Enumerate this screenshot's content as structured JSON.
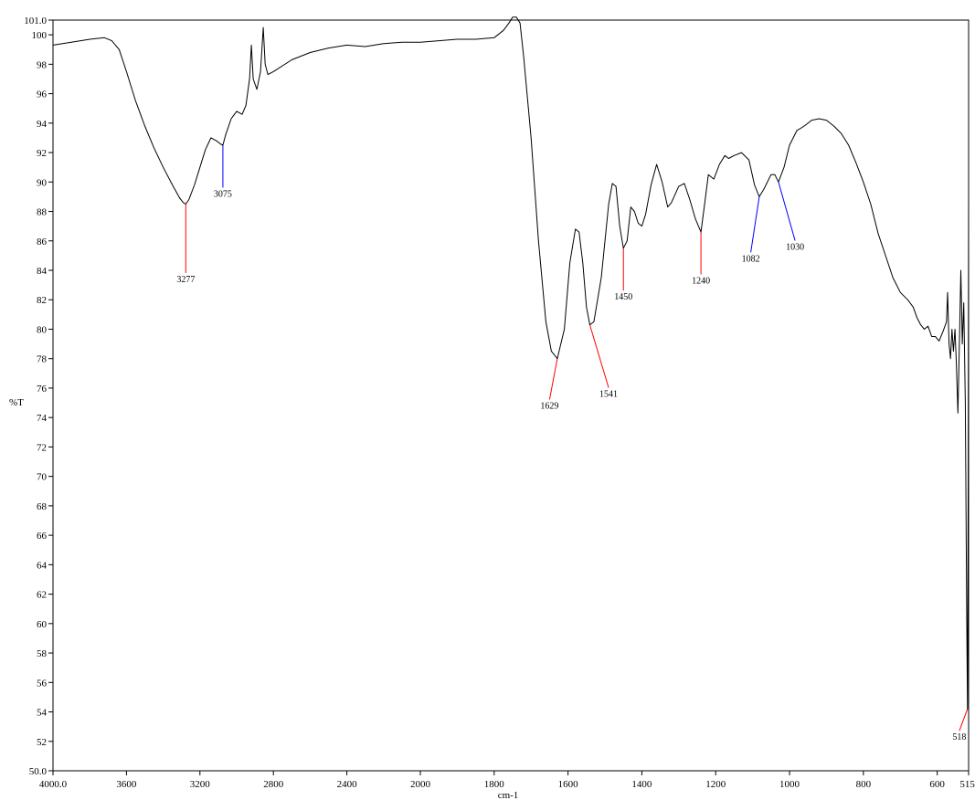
{
  "chart_data": {
    "type": "line",
    "title": "",
    "xlabel": "cm-1",
    "ylabel": "%T",
    "xlim": [
      4000.0,
      515.0
    ],
    "ylim": [
      50.0,
      101.0
    ],
    "x_reversed": true,
    "grid": false,
    "x_tick_values": [
      4000,
      3600,
      3200,
      2800,
      2400,
      2000,
      1800,
      1600,
      1400,
      1200,
      1000,
      800,
      600,
      515
    ],
    "x_tick_labels": [
      "4000.0",
      "3600",
      "3200",
      "2800",
      "2400",
      "2000",
      "1800",
      "1600",
      "1400",
      "1200",
      "1000",
      "800",
      "600",
      "515."
    ],
    "y_tick_values": [
      50,
      52,
      54,
      56,
      58,
      60,
      62,
      64,
      66,
      68,
      70,
      72,
      74,
      76,
      78,
      80,
      82,
      84,
      86,
      88,
      90,
      92,
      94,
      96,
      98,
      100,
      101
    ],
    "y_tick_labels": [
      "50.0",
      "52",
      "54",
      "56",
      "58",
      "60",
      "62",
      "64",
      "66",
      "68",
      "70",
      "72",
      "74",
      "76",
      "78",
      "80",
      "82",
      "84",
      "86",
      "88",
      "90",
      "92",
      "94",
      "96",
      "98",
      "100",
      "101.0"
    ],
    "series": [
      {
        "color": "#000000",
        "points": [
          [
            4000,
            99.3
          ],
          [
            3900,
            99.5
          ],
          [
            3800,
            99.7
          ],
          [
            3720,
            99.8
          ],
          [
            3680,
            99.6
          ],
          [
            3640,
            99.0
          ],
          [
            3600,
            97.5
          ],
          [
            3550,
            95.5
          ],
          [
            3500,
            93.8
          ],
          [
            3450,
            92.3
          ],
          [
            3400,
            91.0
          ],
          [
            3350,
            89.8
          ],
          [
            3310,
            88.9
          ],
          [
            3290,
            88.6
          ],
          [
            3277,
            88.5
          ],
          [
            3260,
            88.8
          ],
          [
            3230,
            89.8
          ],
          [
            3200,
            91.0
          ],
          [
            3170,
            92.2
          ],
          [
            3140,
            93.0
          ],
          [
            3110,
            92.8
          ],
          [
            3090,
            92.6
          ],
          [
            3075,
            92.5
          ],
          [
            3060,
            93.2
          ],
          [
            3030,
            94.3
          ],
          [
            3000,
            94.8
          ],
          [
            2970,
            94.6
          ],
          [
            2950,
            95.2
          ],
          [
            2930,
            97.0
          ],
          [
            2920,
            99.3
          ],
          [
            2910,
            97.0
          ],
          [
            2890,
            96.3
          ],
          [
            2870,
            97.5
          ],
          [
            2855,
            100.5
          ],
          [
            2845,
            98.0
          ],
          [
            2830,
            97.3
          ],
          [
            2800,
            97.5
          ],
          [
            2700,
            98.3
          ],
          [
            2600,
            98.8
          ],
          [
            2500,
            99.1
          ],
          [
            2400,
            99.3
          ],
          [
            2300,
            99.2
          ],
          [
            2200,
            99.4
          ],
          [
            2100,
            99.5
          ],
          [
            2000,
            99.5
          ],
          [
            1950,
            99.6
          ],
          [
            1900,
            99.7
          ],
          [
            1850,
            99.7
          ],
          [
            1800,
            99.8
          ],
          [
            1775,
            100.3
          ],
          [
            1760,
            100.8
          ],
          [
            1750,
            101.2
          ],
          [
            1740,
            101.2
          ],
          [
            1730,
            100.8
          ],
          [
            1720,
            98.5
          ],
          [
            1700,
            93.0
          ],
          [
            1680,
            86.0
          ],
          [
            1660,
            80.5
          ],
          [
            1645,
            78.5
          ],
          [
            1629,
            78.0
          ],
          [
            1610,
            80.0
          ],
          [
            1595,
            84.5
          ],
          [
            1580,
            86.8
          ],
          [
            1570,
            86.6
          ],
          [
            1560,
            84.5
          ],
          [
            1550,
            81.5
          ],
          [
            1541,
            80.3
          ],
          [
            1530,
            80.5
          ],
          [
            1510,
            83.5
          ],
          [
            1490,
            88.5
          ],
          [
            1480,
            89.9
          ],
          [
            1470,
            89.7
          ],
          [
            1460,
            87.0
          ],
          [
            1450,
            85.5
          ],
          [
            1440,
            86.0
          ],
          [
            1430,
            88.3
          ],
          [
            1420,
            88.0
          ],
          [
            1410,
            87.2
          ],
          [
            1400,
            87.0
          ],
          [
            1390,
            87.8
          ],
          [
            1375,
            89.8
          ],
          [
            1360,
            91.2
          ],
          [
            1345,
            90.0
          ],
          [
            1330,
            88.3
          ],
          [
            1320,
            88.6
          ],
          [
            1300,
            89.7
          ],
          [
            1285,
            89.9
          ],
          [
            1270,
            88.8
          ],
          [
            1255,
            87.5
          ],
          [
            1240,
            86.6
          ],
          [
            1230,
            88.5
          ],
          [
            1220,
            90.5
          ],
          [
            1205,
            90.2
          ],
          [
            1190,
            91.2
          ],
          [
            1175,
            91.8
          ],
          [
            1165,
            91.6
          ],
          [
            1150,
            91.8
          ],
          [
            1130,
            92.0
          ],
          [
            1110,
            91.5
          ],
          [
            1095,
            89.8
          ],
          [
            1082,
            89.0
          ],
          [
            1070,
            89.5
          ],
          [
            1050,
            90.5
          ],
          [
            1040,
            90.5
          ],
          [
            1030,
            90.0
          ],
          [
            1015,
            91.0
          ],
          [
            1000,
            92.5
          ],
          [
            980,
            93.5
          ],
          [
            960,
            93.8
          ],
          [
            940,
            94.2
          ],
          [
            920,
            94.3
          ],
          [
            900,
            94.2
          ],
          [
            880,
            93.8
          ],
          [
            860,
            93.3
          ],
          [
            840,
            92.5
          ],
          [
            820,
            91.3
          ],
          [
            800,
            90.0
          ],
          [
            780,
            88.5
          ],
          [
            760,
            86.5
          ],
          [
            740,
            85.0
          ],
          [
            720,
            83.5
          ],
          [
            700,
            82.5
          ],
          [
            680,
            82.0
          ],
          [
            665,
            81.5
          ],
          [
            655,
            80.8
          ],
          [
            645,
            80.3
          ],
          [
            635,
            80.0
          ],
          [
            625,
            80.2
          ],
          [
            615,
            79.5
          ],
          [
            605,
            79.5
          ],
          [
            595,
            79.2
          ],
          [
            585,
            79.8
          ],
          [
            575,
            80.5
          ],
          [
            572,
            82.5
          ],
          [
            568,
            79.0
          ],
          [
            564,
            78.0
          ],
          [
            560,
            80.0
          ],
          [
            556,
            78.5
          ],
          [
            552,
            80.0
          ],
          [
            548,
            77.5
          ],
          [
            544,
            74.3
          ],
          [
            540,
            79.0
          ],
          [
            536,
            84.0
          ],
          [
            532,
            79.0
          ],
          [
            528,
            81.8
          ],
          [
            524,
            75.0
          ],
          [
            520,
            60.0
          ],
          [
            518,
            54.2
          ],
          [
            516,
            70.0
          ],
          [
            515,
            88.8
          ]
        ]
      }
    ],
    "peaks": [
      {
        "label": "3277",
        "x": 3277,
        "y": 88.5,
        "color": "red",
        "label_x": 3277,
        "label_y": 83.2
      },
      {
        "label": "3075",
        "x": 3075,
        "y": 92.5,
        "color": "blue",
        "label_x": 3075,
        "label_y": 89.0
      },
      {
        "label": "1629",
        "x": 1629,
        "y": 78.0,
        "color": "red",
        "label_x": 1650,
        "label_y": 74.6
      },
      {
        "label": "1541",
        "x": 1541,
        "y": 80.3,
        "color": "red",
        "label_x": 1490,
        "label_y": 75.4
      },
      {
        "label": "1450",
        "x": 1450,
        "y": 85.5,
        "color": "red",
        "label_x": 1450,
        "label_y": 82.0
      },
      {
        "label": "1240",
        "x": 1240,
        "y": 86.6,
        "color": "red",
        "label_x": 1240,
        "label_y": 83.1
      },
      {
        "label": "1082",
        "x": 1082,
        "y": 89.0,
        "color": "blue",
        "label_x": 1105,
        "label_y": 84.6
      },
      {
        "label": "1030",
        "x": 1030,
        "y": 90.0,
        "color": "blue",
        "label_x": 985,
        "label_y": 85.4
      },
      {
        "label": "518",
        "x": 518,
        "y": 54.2,
        "color": "red",
        "label_x": 540,
        "label_y": 52.1
      }
    ]
  }
}
